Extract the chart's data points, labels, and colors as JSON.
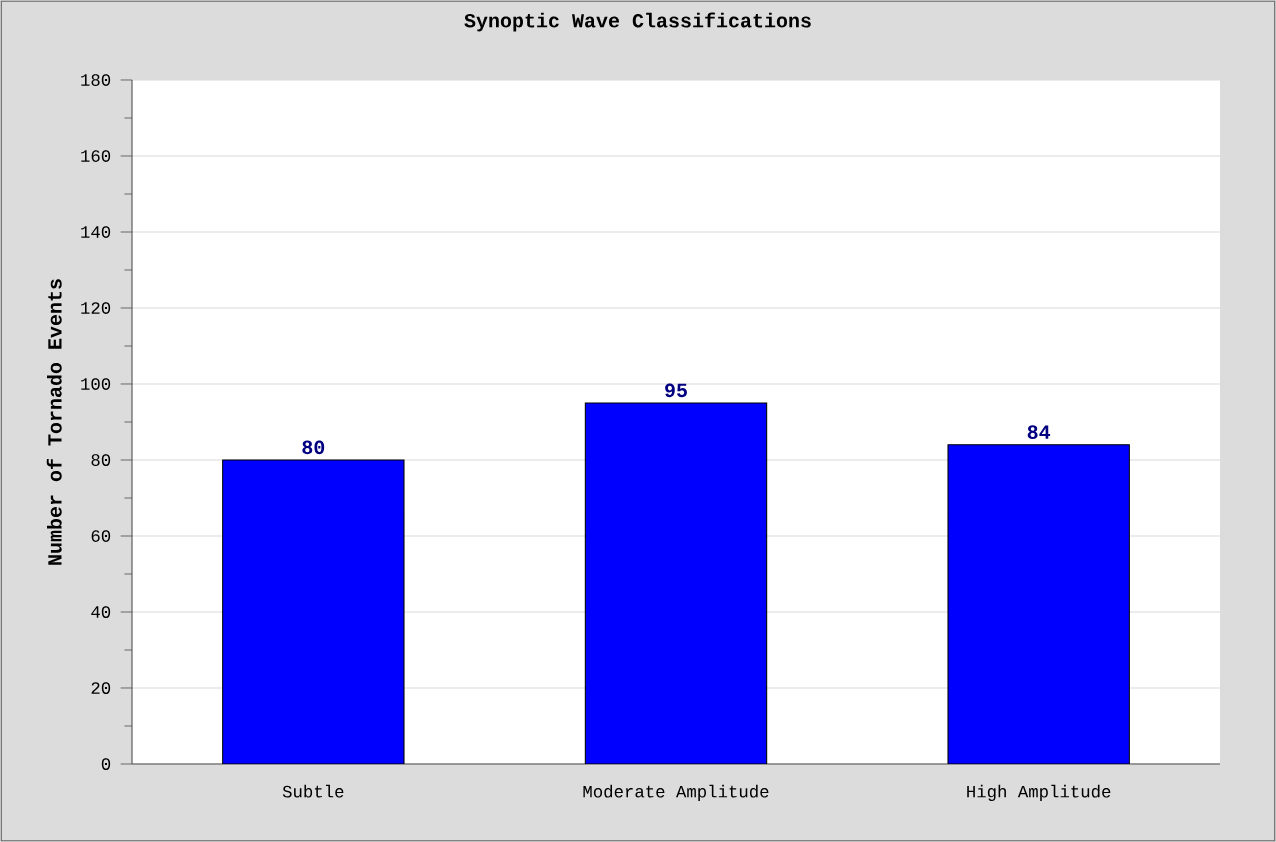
{
  "chart_data": {
    "type": "bar",
    "title": "Synoptic Wave Classifications",
    "ylabel": "Number of Tornado Events",
    "categories": [
      "Subtle",
      "Moderate Amplitude",
      "High Amplitude"
    ],
    "values": [
      80,
      95,
      84
    ],
    "color": "#0000ff",
    "ylim": [
      0,
      180
    ],
    "yticks": [
      0,
      20,
      40,
      60,
      80,
      100,
      120,
      140,
      160,
      180
    ],
    "grid": "y",
    "data_labels": true
  }
}
